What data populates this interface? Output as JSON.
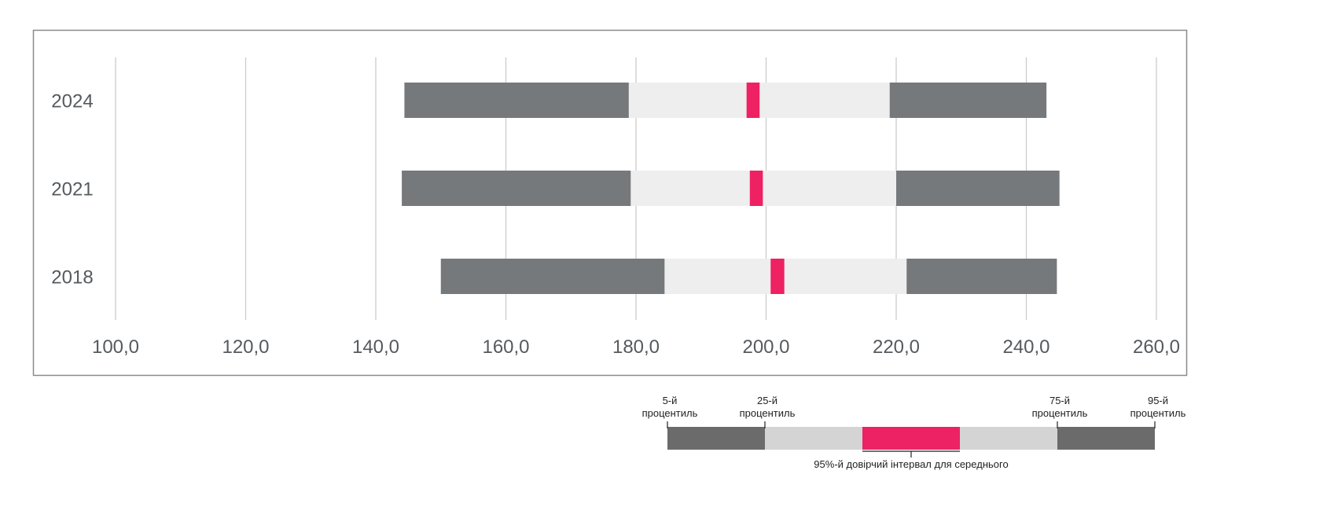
{
  "chart_data": {
    "type": "bar",
    "subtype": "percentile-range",
    "categories": [
      "2024",
      "2021",
      "2018"
    ],
    "xlim": [
      100,
      260
    ],
    "xticks": [
      "100,0",
      "120,0",
      "140,0",
      "160,0",
      "180,0",
      "200,0",
      "220,0",
      "240,0",
      "260,0"
    ],
    "xtick_values": [
      100,
      120,
      140,
      160,
      180,
      200,
      220,
      240,
      260
    ],
    "grid": "vertical",
    "series": [
      {
        "category": "2024",
        "p5": 144.4,
        "p25": 178.9,
        "ci_low": 197.0,
        "ci_high": 199.0,
        "p75": 219.0,
        "p95": 243.1
      },
      {
        "category": "2021",
        "p5": 144.0,
        "p25": 179.2,
        "ci_low": 197.5,
        "ci_high": 199.5,
        "p75": 220.0,
        "p95": 245.1
      },
      {
        "category": "2018",
        "p5": 150.0,
        "p25": 184.4,
        "ci_low": 200.7,
        "ci_high": 202.8,
        "p75": 221.6,
        "p95": 244.7
      }
    ],
    "colors": {
      "outer": "#76797c",
      "inner": "#eeeeee",
      "ci": "#ee2163",
      "grid": "#c8c8c8"
    },
    "legend": {
      "placement": "bottom-right",
      "p5": [
        "5-й",
        "процентиль"
      ],
      "p25": [
        "25-й",
        "процентиль"
      ],
      "p75": [
        "75-й",
        "процентиль"
      ],
      "p95": [
        "95-й",
        "процентиль"
      ],
      "ci": "95%-й довірчий інтервал для середнього",
      "colors": {
        "outer": "#6b6b6b",
        "inner": "#d4d4d4",
        "ci": "#ec2265"
      }
    }
  }
}
